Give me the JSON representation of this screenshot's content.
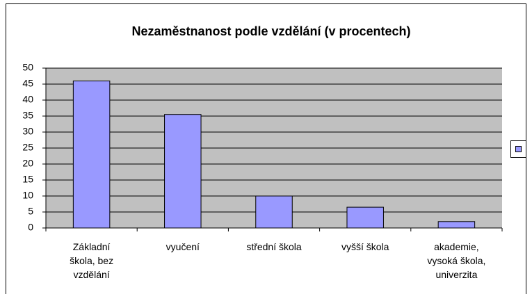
{
  "chart_data": {
    "type": "bar",
    "title": "Nezaměstnanost podle vzdělání (v procentech)",
    "categories": [
      "Základní škola, bez vzdělání",
      "vyučení",
      "střední škola",
      "vyšší škola",
      "akademie, vysoká škola, univerzita"
    ],
    "values": [
      46,
      35.5,
      10,
      6.5,
      2
    ],
    "color": "#9999ff",
    "ylim": [
      0,
      50
    ],
    "yticks": [
      0,
      5,
      10,
      15,
      20,
      25,
      30,
      35,
      40,
      45,
      50
    ],
    "grid": true
  }
}
